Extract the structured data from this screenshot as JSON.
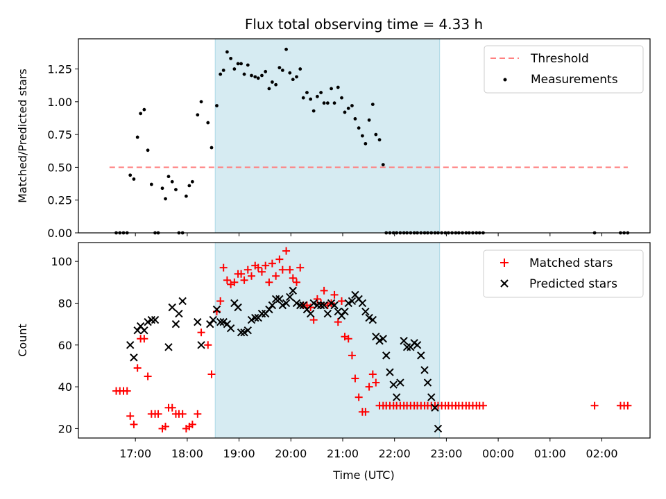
{
  "title": "Flux total observing time = 4.33 h",
  "xlabel": "Time (UTC)",
  "xticks": [
    "17:00",
    "18:00",
    "19:00",
    "20:00",
    "21:00",
    "22:00",
    "23:00",
    "00:00",
    "01:00",
    "02:00"
  ],
  "xtick_hours": [
    17,
    18,
    19,
    20,
    21,
    22,
    23,
    24,
    25,
    26
  ],
  "xlim_hours": [
    15.9,
    26.93
  ],
  "observing_window_hours": [
    18.54,
    22.87
  ],
  "window_color": "#add8e6",
  "chart_data": [
    {
      "type": "scatter",
      "ylabel": "Matched/Predicted stars",
      "ylim": [
        0,
        1.48
      ],
      "yticks": [
        "0.00",
        "0.25",
        "0.50",
        "0.75",
        "1.00",
        "1.25"
      ],
      "ytick_values": [
        0,
        0.25,
        0.5,
        0.75,
        1.0,
        1.25
      ],
      "legend_position": "top-right",
      "threshold": {
        "name": "Threshold",
        "value": 0.5,
        "x_range": [
          16.5,
          26.5
        ],
        "color": "#ff8080",
        "style": "dashed"
      },
      "series": [
        {
          "name": "Measurements",
          "color": "#000000",
          "marker": "dot",
          "x": [
            16.63,
            16.7,
            16.77,
            16.84,
            16.9,
            16.97,
            17.04,
            17.1,
            17.17,
            17.24,
            17.31,
            17.38,
            17.44,
            17.52,
            17.58,
            17.64,
            17.71,
            17.78,
            17.84,
            17.91,
            17.98,
            18.04,
            18.1,
            18.2,
            18.27,
            18.4,
            18.47,
            18.57,
            18.64,
            18.7,
            18.77,
            18.84,
            18.91,
            18.98,
            19.04,
            19.1,
            19.17,
            19.24,
            19.31,
            19.37,
            19.44,
            19.51,
            19.58,
            19.64,
            19.71,
            19.78,
            19.84,
            19.91,
            19.98,
            20.04,
            20.11,
            20.18,
            20.24,
            20.31,
            20.38,
            20.44,
            20.51,
            20.58,
            20.64,
            20.71,
            20.78,
            20.84,
            20.91,
            20.98,
            21.04,
            21.11,
            21.18,
            21.24,
            21.31,
            21.38,
            21.44,
            21.51,
            21.58,
            21.64,
            21.71,
            21.78,
            21.84,
            21.91,
            21.98,
            22.04,
            22.11,
            22.18,
            22.24,
            22.31,
            22.38,
            22.44,
            22.51,
            22.58,
            22.64,
            22.71,
            22.78,
            22.84,
            22.91,
            22.98,
            23.04,
            23.11,
            23.18,
            23.24,
            23.31,
            23.38,
            23.44,
            23.51,
            23.58,
            23.64,
            23.71,
            25.86,
            26.36,
            26.43,
            26.5
          ],
          "y": [
            0,
            0,
            0,
            0,
            0.44,
            0.41,
            0.73,
            0.91,
            0.94,
            0.63,
            0.37,
            0,
            0,
            0.34,
            0.26,
            0.43,
            0.39,
            0.33,
            0,
            0,
            0.28,
            0.36,
            0.39,
            0.9,
            1.0,
            0.84,
            0.65,
            0.97,
            1.21,
            1.24,
            1.38,
            1.33,
            1.25,
            1.29,
            1.29,
            1.21,
            1.28,
            1.2,
            1.19,
            1.18,
            1.2,
            1.23,
            1.1,
            1.15,
            1.13,
            1.26,
            1.24,
            1.4,
            1.22,
            1.17,
            1.19,
            1.25,
            1.03,
            1.07,
            1.02,
            0.93,
            1.04,
            1.07,
            0.99,
            0.99,
            1.1,
            0.99,
            1.11,
            1.03,
            0.92,
            0.95,
            0.97,
            0.87,
            0.8,
            0.74,
            0.68,
            0.86,
            0.98,
            0.75,
            0.71,
            0.52,
            0,
            0,
            0,
            0,
            0,
            0,
            0,
            0,
            0,
            0,
            0,
            0,
            0,
            0,
            0,
            0,
            0,
            0,
            0,
            0,
            0,
            0,
            0,
            0,
            0,
            0,
            0,
            0,
            0,
            0,
            0,
            0,
            0
          ]
        }
      ]
    },
    {
      "type": "scatter",
      "ylabel": "Count",
      "ylim": [
        15.5,
        109
      ],
      "yticks": [
        "20",
        "40",
        "60",
        "80",
        "100"
      ],
      "ytick_values": [
        20,
        40,
        60,
        80,
        100
      ],
      "legend_position": "top-right",
      "series": [
        {
          "name": "Matched stars",
          "color": "#ff0000",
          "marker": "plus",
          "x": [
            16.63,
            16.7,
            16.77,
            16.84,
            16.9,
            16.97,
            17.04,
            17.1,
            17.17,
            17.24,
            17.31,
            17.38,
            17.44,
            17.52,
            17.58,
            17.64,
            17.71,
            17.78,
            17.84,
            17.91,
            17.98,
            18.04,
            18.1,
            18.2,
            18.27,
            18.4,
            18.47,
            18.57,
            18.64,
            18.7,
            18.77,
            18.84,
            18.91,
            18.98,
            19.04,
            19.1,
            19.17,
            19.24,
            19.31,
            19.37,
            19.44,
            19.51,
            19.58,
            19.64,
            19.71,
            19.78,
            19.84,
            19.91,
            19.98,
            20.04,
            20.11,
            20.18,
            20.24,
            20.31,
            20.38,
            20.44,
            20.51,
            20.58,
            20.64,
            20.71,
            20.78,
            20.84,
            20.91,
            20.98,
            21.04,
            21.11,
            21.18,
            21.24,
            21.31,
            21.38,
            21.44,
            21.51,
            21.58,
            21.64,
            21.71,
            21.78,
            21.84,
            21.91,
            21.98,
            22.04,
            22.11,
            22.18,
            22.24,
            22.31,
            22.38,
            22.44,
            22.51,
            22.58,
            22.64,
            22.71,
            22.78,
            22.84,
            22.91,
            22.98,
            23.04,
            23.11,
            23.18,
            23.24,
            23.31,
            23.38,
            23.44,
            23.51,
            23.58,
            23.64,
            23.71,
            25.86,
            26.36,
            26.43,
            26.5
          ],
          "y": [
            38,
            38,
            38,
            38,
            26,
            22,
            49,
            63,
            63,
            45,
            27,
            27,
            27,
            20,
            21,
            30,
            30,
            27,
            27,
            27,
            20,
            21,
            22,
            27,
            66,
            60,
            46,
            76,
            81,
            97,
            91,
            89,
            90,
            94,
            94,
            91,
            96,
            93,
            98,
            97,
            95,
            98,
            90,
            99,
            93,
            101,
            96,
            105,
            96,
            92,
            90,
            97,
            79,
            79,
            78,
            72,
            82,
            80,
            86,
            79,
            80,
            84,
            71,
            81,
            64,
            63,
            55,
            44,
            35,
            28,
            28,
            40,
            46,
            42,
            31,
            31,
            31,
            31,
            31,
            31,
            31,
            31,
            31,
            31,
            31,
            31,
            31,
            31,
            31,
            31,
            31,
            31,
            31,
            31,
            31,
            31,
            31,
            31,
            31,
            31,
            31,
            31,
            31,
            31,
            31,
            31,
            31,
            31,
            31
          ]
        },
        {
          "name": "Predicted stars",
          "color": "#000000",
          "marker": "x",
          "x": [
            16.9,
            16.97,
            17.04,
            17.1,
            17.17,
            17.24,
            17.31,
            17.38,
            17.64,
            17.71,
            17.78,
            17.84,
            17.91,
            18.2,
            18.27,
            18.44,
            18.5,
            18.57,
            18.64,
            18.7,
            18.77,
            18.84,
            18.91,
            18.98,
            19.04,
            19.1,
            19.17,
            19.24,
            19.31,
            19.37,
            19.44,
            19.51,
            19.58,
            19.64,
            19.71,
            19.78,
            19.84,
            19.91,
            19.98,
            20.04,
            20.11,
            20.18,
            20.24,
            20.31,
            20.38,
            20.44,
            20.51,
            20.58,
            20.64,
            20.71,
            20.78,
            20.84,
            20.91,
            20.98,
            21.04,
            21.11,
            21.18,
            21.24,
            21.31,
            21.38,
            21.44,
            21.51,
            21.58,
            21.64,
            21.71,
            21.78,
            21.84,
            21.91,
            21.98,
            22.04,
            22.11,
            22.18,
            22.24,
            22.31,
            22.38,
            22.44,
            22.51,
            22.58,
            22.64,
            22.71,
            22.78,
            22.84
          ],
          "y": [
            60,
            54,
            67,
            69,
            67,
            71,
            72,
            72,
            59,
            78,
            70,
            75,
            81,
            71,
            60,
            70,
            72,
            77,
            71,
            71,
            70,
            68,
            80,
            78,
            66,
            66,
            67,
            72,
            73,
            73,
            75,
            75,
            77,
            79,
            82,
            82,
            79,
            80,
            83,
            86,
            80,
            79,
            79,
            77,
            75,
            80,
            79,
            79,
            79,
            75,
            80,
            79,
            76,
            74,
            76,
            80,
            81,
            84,
            82,
            80,
            76,
            73,
            72,
            64,
            62,
            63,
            55,
            47,
            41,
            35,
            42,
            62,
            59,
            59,
            61,
            60,
            55,
            48,
            42,
            35,
            30,
            20
          ]
        }
      ]
    }
  ]
}
